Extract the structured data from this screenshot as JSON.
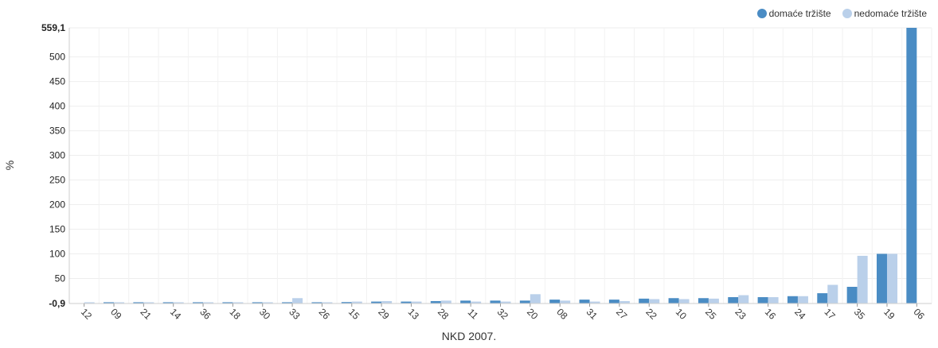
{
  "chart_data": {
    "type": "bar",
    "xlabel": "NKD 2007.",
    "ylabel": "%",
    "ylim": [
      -0.9,
      559.1
    ],
    "yticks": [
      "-0,9",
      "50",
      "100",
      "150",
      "200",
      "250",
      "300",
      "350",
      "400",
      "450",
      "500",
      "559,1"
    ],
    "ytick_values": [
      -0.9,
      50,
      100,
      150,
      200,
      250,
      300,
      350,
      400,
      450,
      500,
      559.1
    ],
    "grid": true,
    "legend_position": "top-right",
    "categories": [
      "12",
      "09",
      "21",
      "14",
      "36",
      "18",
      "30",
      "33",
      "26",
      "15",
      "29",
      "13",
      "28",
      "11",
      "32",
      "20",
      "08",
      "31",
      "27",
      "22",
      "10",
      "25",
      "23",
      "16",
      "24",
      "17",
      "35",
      "19",
      "06"
    ],
    "series": [
      {
        "name": "domaće tržište",
        "color": "#4a8cc4",
        "values": [
          0,
          1,
          1,
          1,
          1,
          1,
          1,
          1,
          1,
          2,
          3,
          3,
          4,
          5,
          5,
          5,
          7,
          7,
          7,
          9,
          10,
          10,
          12,
          12,
          14,
          20,
          33,
          100,
          559.1
        ]
      },
      {
        "name": "nedomaće tržište",
        "color": "#bad0ea",
        "values": [
          1,
          1,
          1,
          1,
          1,
          1,
          1,
          10,
          1,
          3,
          4,
          3,
          5,
          3,
          3,
          18,
          5,
          3,
          4,
          8,
          8,
          9,
          16,
          12,
          14,
          37,
          96,
          100,
          0
        ]
      }
    ]
  }
}
